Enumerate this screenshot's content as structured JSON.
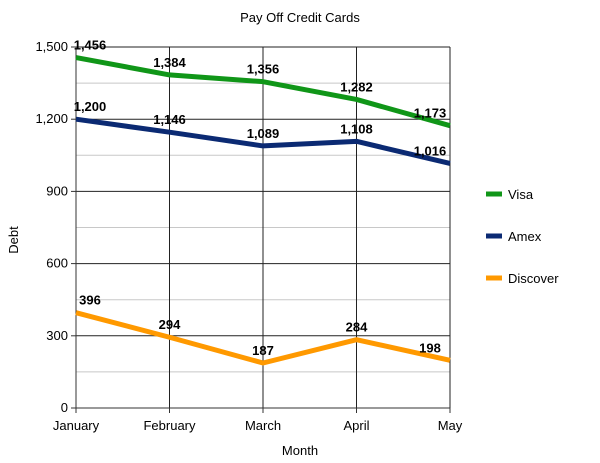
{
  "chart_data": {
    "type": "line",
    "title": "Pay Off Credit Cards",
    "xlabel": "Month",
    "ylabel": "Debt",
    "categories": [
      "January",
      "February",
      "March",
      "April",
      "May"
    ],
    "ylim": [
      0,
      1500
    ],
    "yticks": [
      "0",
      "300",
      "600",
      "900",
      "1,200",
      "1,500"
    ],
    "ytick_values": [
      0,
      300,
      600,
      900,
      1200,
      1500
    ],
    "grid": true,
    "legend_position": "right",
    "series": [
      {
        "name": "Visa",
        "color": "#109618",
        "values": [
          1456,
          1384,
          1356,
          1282,
          1173
        ],
        "labels": [
          "1,456",
          "1,384",
          "1,356",
          "1,282",
          "1,173"
        ]
      },
      {
        "name": "Amex",
        "color": "#0b2a73",
        "values": [
          1200,
          1146,
          1089,
          1108,
          1016
        ],
        "labels": [
          "1,200",
          "1,146",
          "1,089",
          "1,108",
          "1,016"
        ]
      },
      {
        "name": "Discover",
        "color": "#ff9900",
        "values": [
          396,
          294,
          187,
          284,
          198
        ],
        "labels": [
          "396",
          "294",
          "187",
          "284",
          "198"
        ]
      }
    ]
  }
}
